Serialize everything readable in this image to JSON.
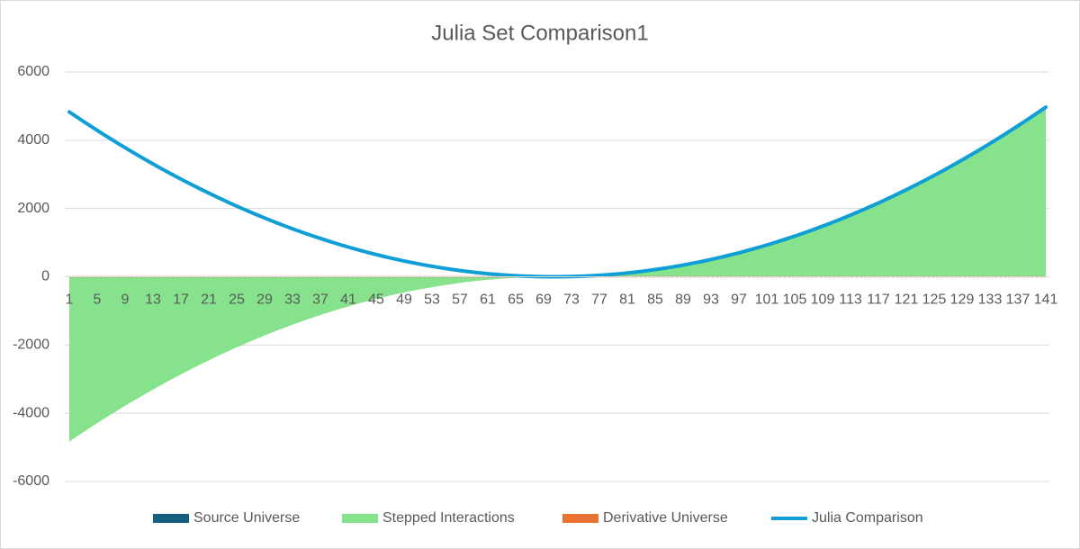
{
  "chart_data": {
    "type": "combo",
    "title": "Julia Set Comparison1",
    "categories": [
      1,
      null,
      null,
      null,
      5,
      null,
      null,
      null,
      9,
      null,
      null,
      null,
      13,
      null,
      null,
      null,
      17,
      null,
      null,
      null,
      21,
      null,
      null,
      null,
      25,
      null,
      null,
      null,
      29,
      null,
      null,
      null,
      33,
      null,
      null,
      null,
      37,
      null,
      null,
      null,
      41,
      null,
      null,
      null,
      45,
      null,
      null,
      null,
      49,
      null,
      null,
      null,
      53,
      null,
      null,
      null,
      57,
      null,
      null,
      null,
      61,
      null,
      null,
      null,
      65,
      null,
      null,
      null,
      69,
      null,
      null,
      null,
      73,
      null,
      null,
      null,
      77,
      null,
      null,
      null,
      81,
      null,
      null,
      null,
      85,
      null,
      null,
      null,
      89,
      null,
      null,
      null,
      93,
      null,
      null,
      null,
      97,
      null,
      null,
      null,
      101,
      null,
      null,
      null,
      105,
      null,
      null,
      null,
      109,
      null,
      null,
      null,
      113,
      null,
      null,
      null,
      117,
      null,
      null,
      null,
      121,
      null,
      null,
      null,
      125,
      null,
      null,
      null,
      129,
      null,
      null,
      null,
      133,
      null,
      null,
      null,
      137,
      null,
      null,
      null,
      141
    ],
    "ylim": [
      -6000,
      6000
    ],
    "yticks": [
      -6000,
      -4000,
      -2000,
      0,
      2000,
      4000,
      6000
    ],
    "grid": true,
    "legend": "bottom",
    "series": [
      {
        "name": "Source Universe",
        "type": "bar",
        "color": "#156082",
        "values": [
          0,
          0,
          0,
          0,
          0,
          0,
          0,
          0,
          0,
          0,
          0,
          0,
          0,
          0,
          0,
          0,
          0,
          0,
          0,
          0,
          0,
          0,
          0,
          0,
          0,
          0,
          0,
          0,
          0,
          0,
          0,
          0,
          0,
          0,
          0,
          0,
          0,
          0,
          0,
          0,
          0,
          0,
          0,
          0,
          0,
          0,
          0,
          0,
          0,
          0,
          0,
          0,
          0,
          0,
          0,
          0,
          0,
          0,
          0,
          0,
          0,
          0,
          0,
          0,
          0,
          0,
          0,
          0,
          0,
          0,
          0,
          0,
          0,
          0,
          0,
          0,
          0,
          0,
          0,
          0,
          0,
          0,
          0,
          0,
          0,
          0,
          0,
          0,
          0,
          0,
          0,
          0,
          0,
          0,
          0,
          0,
          0,
          0,
          0,
          0,
          0,
          0,
          0,
          0,
          0,
          0,
          0,
          0,
          0,
          0,
          0,
          0,
          0,
          0,
          0,
          0,
          0,
          0,
          0,
          0,
          0,
          0,
          0,
          0,
          0,
          0,
          0,
          0,
          0,
          0,
          0,
          0,
          0,
          0,
          0,
          0,
          0,
          0,
          0,
          0,
          0
        ]
      },
      {
        "name": "Stepped Interactions",
        "type": "area",
        "color": "#86e28d",
        "values": [
          -4830,
          -4692,
          -4556,
          -4422,
          -4290,
          -4160,
          -4032,
          -3906,
          -3782,
          -3660,
          -3540,
          -3422,
          -3306,
          -3192,
          -3080,
          -2970,
          -2862,
          -2756,
          -2652,
          -2550,
          -2450,
          -2352,
          -2256,
          -2162,
          -2070,
          -1980,
          -1892,
          -1806,
          -1722,
          -1640,
          -1560,
          -1482,
          -1406,
          -1332,
          -1260,
          -1190,
          -1122,
          -1056,
          -992,
          -930,
          -870,
          -812,
          -756,
          -702,
          -650,
          -600,
          -552,
          -506,
          -462,
          -420,
          -380,
          -342,
          -306,
          -272,
          -240,
          -210,
          -182,
          -156,
          -132,
          -110,
          -90,
          -72,
          -56,
          -42,
          -30,
          -20,
          -12,
          -6,
          -2,
          0,
          0,
          2,
          6,
          12,
          20,
          30,
          42,
          56,
          72,
          90,
          110,
          132,
          156,
          182,
          210,
          240,
          272,
          306,
          342,
          380,
          420,
          462,
          506,
          552,
          600,
          650,
          702,
          756,
          812,
          870,
          930,
          992,
          1056,
          1122,
          1190,
          1260,
          1332,
          1406,
          1482,
          1560,
          1640,
          1722,
          1806,
          1892,
          1980,
          2070,
          2162,
          2256,
          2352,
          2450,
          2550,
          2652,
          2756,
          2862,
          2970,
          3080,
          3192,
          3306,
          3422,
          3540,
          3660,
          3782,
          3906,
          4032,
          4160,
          4290,
          4422,
          4556,
          4692,
          4830,
          4970
        ]
      },
      {
        "name": "Derivative Universe",
        "type": "area",
        "color": "#e97132",
        "values": [
          0,
          0,
          0,
          0,
          0,
          0,
          0,
          0,
          0,
          0,
          0,
          0,
          0,
          0,
          0,
          0,
          0,
          0,
          0,
          0,
          0,
          0,
          0,
          0,
          0,
          0,
          0,
          0,
          0,
          0,
          0,
          0,
          0,
          0,
          0,
          0,
          0,
          0,
          0,
          0,
          0,
          0,
          0,
          0,
          0,
          0,
          0,
          0,
          0,
          0,
          0,
          0,
          0,
          0,
          0,
          0,
          0,
          0,
          0,
          0,
          0,
          0,
          0,
          0,
          0,
          0,
          0,
          0,
          0,
          0,
          0,
          0,
          0,
          0,
          0,
          0,
          0,
          0,
          0,
          0,
          0,
          0,
          0,
          0,
          0,
          0,
          0,
          0,
          0,
          0,
          0,
          0,
          0,
          0,
          0,
          0,
          0,
          0,
          0,
          0,
          0,
          0,
          0,
          0,
          0,
          0,
          0,
          0,
          0,
          0,
          0,
          0,
          0,
          0,
          0,
          0,
          0,
          0,
          0,
          0,
          0,
          0,
          0,
          0,
          0,
          0,
          0,
          0,
          0,
          0,
          0,
          0,
          0,
          0,
          0,
          0,
          0,
          0,
          0,
          0,
          0
        ]
      },
      {
        "name": "Julia Comparison",
        "type": "line",
        "color": "#0f9ed5",
        "values": [
          4830,
          4692,
          4556,
          4422,
          4290,
          4160,
          4032,
          3906,
          3782,
          3660,
          3540,
          3422,
          3306,
          3192,
          3080,
          2970,
          2862,
          2756,
          2652,
          2550,
          2450,
          2352,
          2256,
          2162,
          2070,
          1980,
          1892,
          1806,
          1722,
          1640,
          1560,
          1482,
          1406,
          1332,
          1260,
          1190,
          1122,
          1056,
          992,
          930,
          870,
          812,
          756,
          702,
          650,
          600,
          552,
          506,
          462,
          420,
          380,
          342,
          306,
          272,
          240,
          210,
          182,
          156,
          132,
          110,
          90,
          72,
          56,
          42,
          30,
          20,
          12,
          6,
          2,
          0,
          0,
          2,
          6,
          12,
          20,
          30,
          42,
          56,
          72,
          90,
          110,
          132,
          156,
          182,
          210,
          240,
          272,
          306,
          342,
          380,
          420,
          462,
          506,
          552,
          600,
          650,
          702,
          756,
          812,
          870,
          930,
          992,
          1056,
          1122,
          1190,
          1260,
          1332,
          1406,
          1482,
          1560,
          1640,
          1722,
          1806,
          1892,
          1980,
          2070,
          2162,
          2256,
          2352,
          2450,
          2550,
          2652,
          2756,
          2862,
          2970,
          3080,
          3192,
          3306,
          3422,
          3540,
          3660,
          3782,
          3906,
          4032,
          4160,
          4290,
          4422,
          4556,
          4692,
          4830,
          4970
        ]
      }
    ]
  }
}
